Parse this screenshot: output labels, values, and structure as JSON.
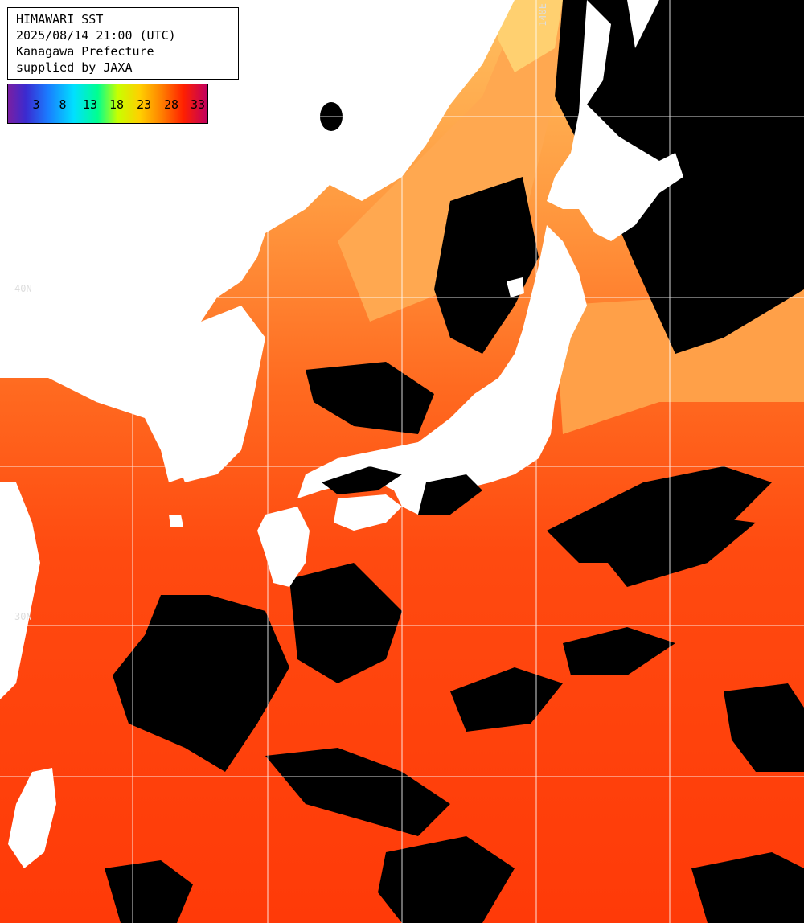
{
  "info": {
    "line1": "HIMAWARI SST",
    "line2": "2025/08/14 21:00 (UTC)",
    "line3": "Kanagawa Prefecture",
    "line4": "supplied by JAXA"
  },
  "legend": {
    "ticks": [
      "3",
      "8",
      "13",
      "18",
      "23",
      "28",
      "33"
    ],
    "colors": [
      "#7a1fa2",
      "#1a7cff",
      "#00e0ff",
      "#00ff90",
      "#ffd000",
      "#ff8000",
      "#ff2000",
      "#c00060"
    ]
  },
  "grid_labels": {
    "lat_top": "40N",
    "lat_mid": "30N",
    "lon_top": "140E"
  },
  "colors": {
    "warm_sea": "#ff4a0f",
    "sea_orange": "#ff6a20",
    "cool_sea": "#ffb050",
    "cold_sea": "#d8ff70",
    "land": "#ffffff",
    "cloud": "#000000",
    "grid": "#ffffff"
  }
}
